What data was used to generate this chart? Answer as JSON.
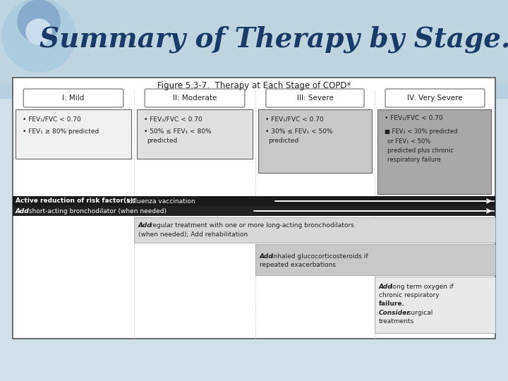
{
  "title": "Summary of Therapy by Stage.",
  "fig_title": "Figure 5.3-7.  Therapy at Each Stage of COPD*",
  "background_top": "#c8dce8",
  "background_bottom": "#dce8f0",
  "stages": [
    "I: Mild",
    "II: Moderate",
    "III: Severe",
    "IV: Very Severe"
  ],
  "stage_box_color": "#ffffff",
  "stage_box_border": "#888888",
  "mild_criteria": [
    "FEV₁/FVC < 0.70",
    "FEV₁ ≥ 80% predicted"
  ],
  "moderate_criteria": [
    "FEV₁/FVC < 0.70",
    "50% ≤ FEV₁ < 80%\npredicted"
  ],
  "severe_criteria": [
    "FEV₁/FVC < 0.70",
    "30% ≤ FEV₁ < 50%\npredicted"
  ],
  "very_severe_criteria": [
    "FEV₁/FVC < 0.70",
    "FEV₁ < 30% predicted\nor FEV₁ < 50%\npredicted plus chronic\nrespiratory failure"
  ],
  "row1_text": "Active reduction of risk factor(s); Influenza vaccination",
  "row1_bold": "Active reduction of risk factor(s);",
  "row2_text": "Add short-acting bronchodilator (when needed)",
  "row3_text": "Add regular treatment with one or more long-acting bronchodilators\n(when needed); Add rehabilitation",
  "row4_text": "Add inhaled glucocorticosteroids if\nrepeated exacerbations",
  "row5_text": "Add long term oxygen if\nchronic respiratory\nfailure.\nConsider surgical\ntreatments",
  "dark_row_color": "#1a1a1a",
  "light_gray1": "#d8d8d8",
  "light_gray2": "#c8c8c8",
  "light_gray3": "#b8b8b8",
  "very_severe_box_color": "#a0a0a0",
  "main_box_bg": "#ffffff",
  "main_box_border": "#666666"
}
